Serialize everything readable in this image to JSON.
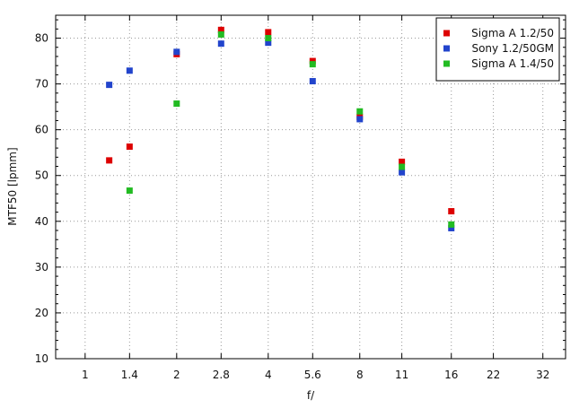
{
  "chart_data": {
    "type": "scatter",
    "xlabel": "f/",
    "ylabel": "MTF50 [lpmm]",
    "x_scale": "log2",
    "x_ticks": [
      {
        "value": 1,
        "label": "1"
      },
      {
        "value": 1.4,
        "label": "1.4"
      },
      {
        "value": 2,
        "label": "2"
      },
      {
        "value": 2.8,
        "label": "2.8"
      },
      {
        "value": 4,
        "label": "4"
      },
      {
        "value": 5.6,
        "label": "5.6"
      },
      {
        "value": 8,
        "label": "8"
      },
      {
        "value": 11,
        "label": "11"
      },
      {
        "value": 16,
        "label": "16"
      },
      {
        "value": 22,
        "label": "22"
      },
      {
        "value": 32,
        "label": "32"
      }
    ],
    "xlim": [
      0.8,
      38
    ],
    "ylim": [
      10,
      85
    ],
    "y_ticks": [
      10,
      20,
      30,
      40,
      50,
      60,
      70,
      80
    ],
    "grid": true,
    "legend_position": "top-right",
    "series": [
      {
        "name": "Sigma A 1.2/50",
        "color": "#dd0000",
        "points": [
          {
            "x": 1.2,
            "y": 53.3
          },
          {
            "x": 1.4,
            "y": 56.3
          },
          {
            "x": 2,
            "y": 76.5
          },
          {
            "x": 2.8,
            "y": 81.8
          },
          {
            "x": 4,
            "y": 81.3
          },
          {
            "x": 5.6,
            "y": 75.0
          },
          {
            "x": 8,
            "y": 62.8
          },
          {
            "x": 11,
            "y": 53.0
          },
          {
            "x": 16,
            "y": 42.2
          }
        ]
      },
      {
        "name": "Sony 1.2/50GM",
        "color": "#2244cc",
        "points": [
          {
            "x": 1.2,
            "y": 69.8
          },
          {
            "x": 1.4,
            "y": 72.9
          },
          {
            "x": 2,
            "y": 77.0
          },
          {
            "x": 2.8,
            "y": 78.8
          },
          {
            "x": 4,
            "y": 79.0
          },
          {
            "x": 5.6,
            "y": 70.6
          },
          {
            "x": 8,
            "y": 62.3
          },
          {
            "x": 11,
            "y": 50.7
          },
          {
            "x": 16,
            "y": 38.5
          }
        ]
      },
      {
        "name": "Sigma A 1.4/50",
        "color": "#22bb22",
        "points": [
          {
            "x": 1.4,
            "y": 46.7
          },
          {
            "x": 2,
            "y": 65.7
          },
          {
            "x": 2.8,
            "y": 80.8
          },
          {
            "x": 4,
            "y": 80.0
          },
          {
            "x": 5.6,
            "y": 74.3
          },
          {
            "x": 8,
            "y": 64.0
          },
          {
            "x": 11,
            "y": 51.9
          },
          {
            "x": 16,
            "y": 39.3
          }
        ]
      }
    ]
  }
}
